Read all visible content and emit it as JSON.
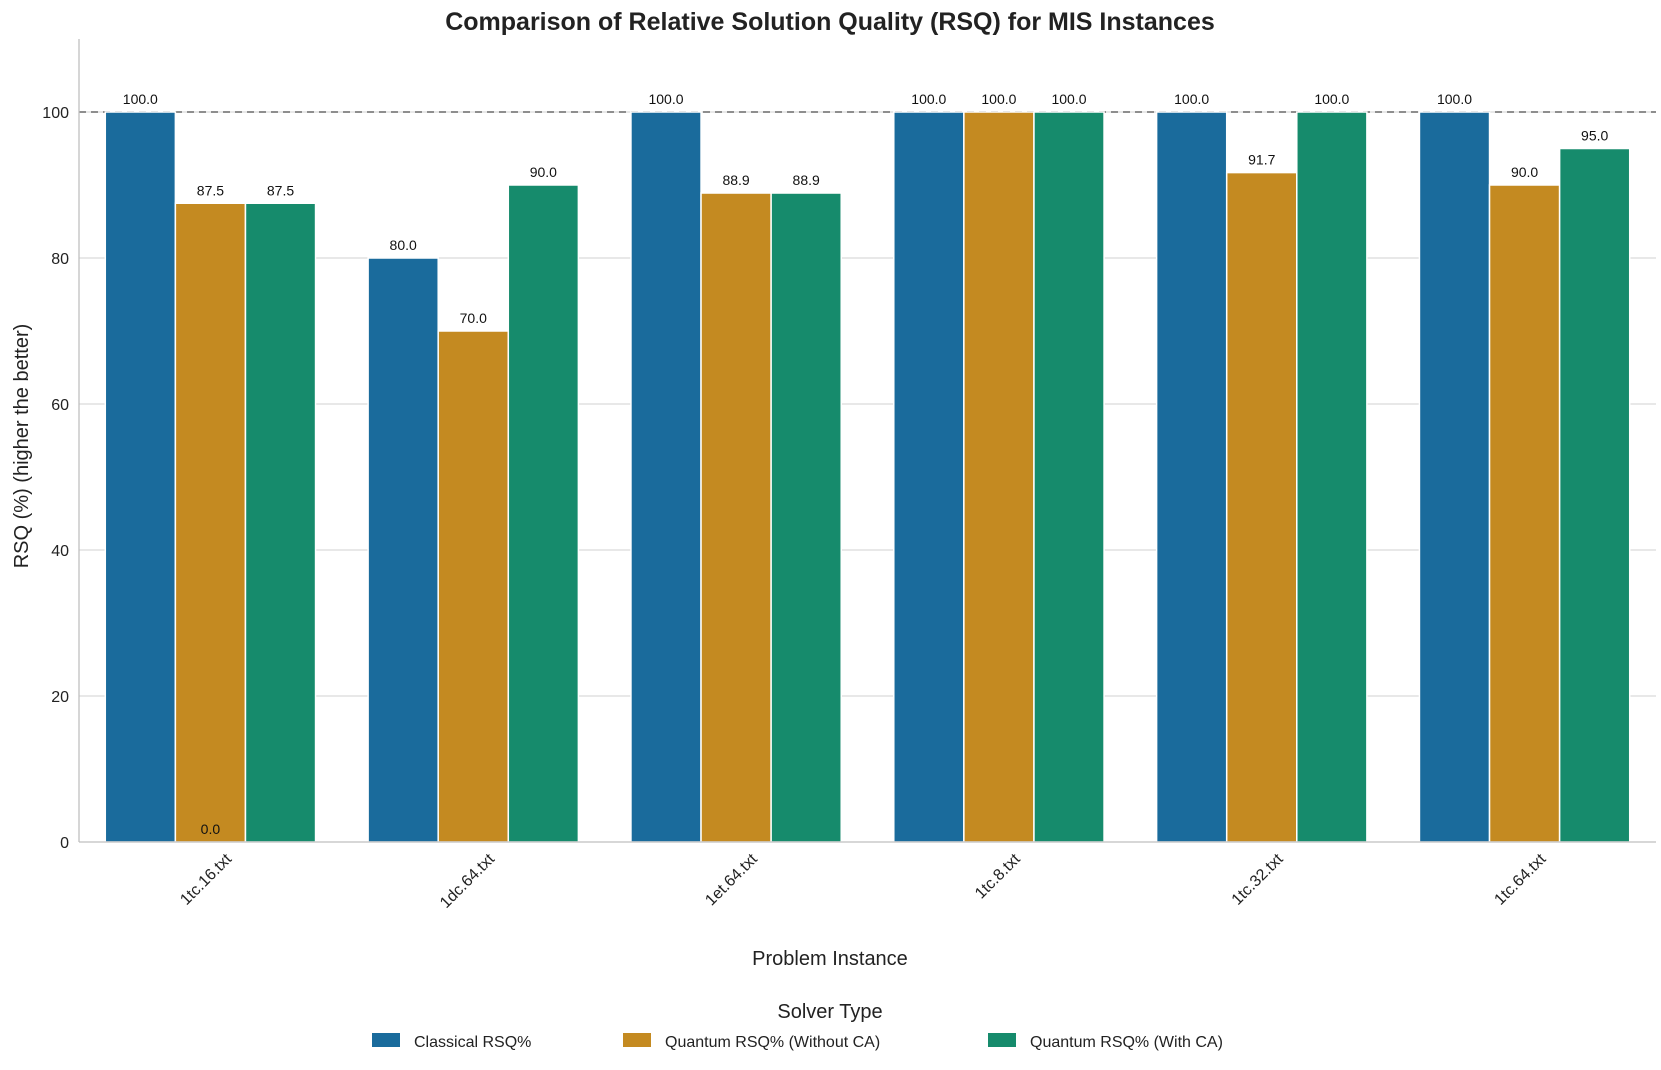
{
  "chart_data": {
    "type": "bar",
    "title": "Comparison of Relative Solution Quality (RSQ) for MIS Instances",
    "xlabel": "Problem Instance",
    "ylabel": "RSQ (%) (higher the better)",
    "ylim": [
      0,
      110
    ],
    "yticks": [
      0,
      20,
      40,
      60,
      80,
      100
    ],
    "reference_line": 100,
    "grid": "horizontal",
    "categories": [
      "1tc.16.txt",
      "1dc.64.txt",
      "1et.64.txt",
      "1tc.8.txt",
      "1tc.32.txt",
      "1tc.64.txt"
    ],
    "series": [
      {
        "name": "Classical RSQ%",
        "color": "#1a6b9c",
        "values": [
          100.0,
          80.0,
          100.0,
          100.0,
          100.0,
          100.0
        ]
      },
      {
        "name": "Quantum RSQ% (Without CA)",
        "color": "#c48a21",
        "values": [
          87.5,
          70.0,
          88.9,
          100.0,
          91.7,
          90.0
        ]
      },
      {
        "name": "Quantum RSQ% (With CA)",
        "color": "#168b6c",
        "values": [
          87.5,
          90.0,
          88.9,
          100.0,
          100.0,
          95.0
        ]
      }
    ],
    "annotations": [
      {
        "text": "0.0",
        "category": "1tc.16.txt",
        "series": "Quantum RSQ% (Without CA)",
        "value": 0.0
      }
    ],
    "legend": {
      "title": "Solver Type",
      "placement": "bottom-center"
    }
  }
}
